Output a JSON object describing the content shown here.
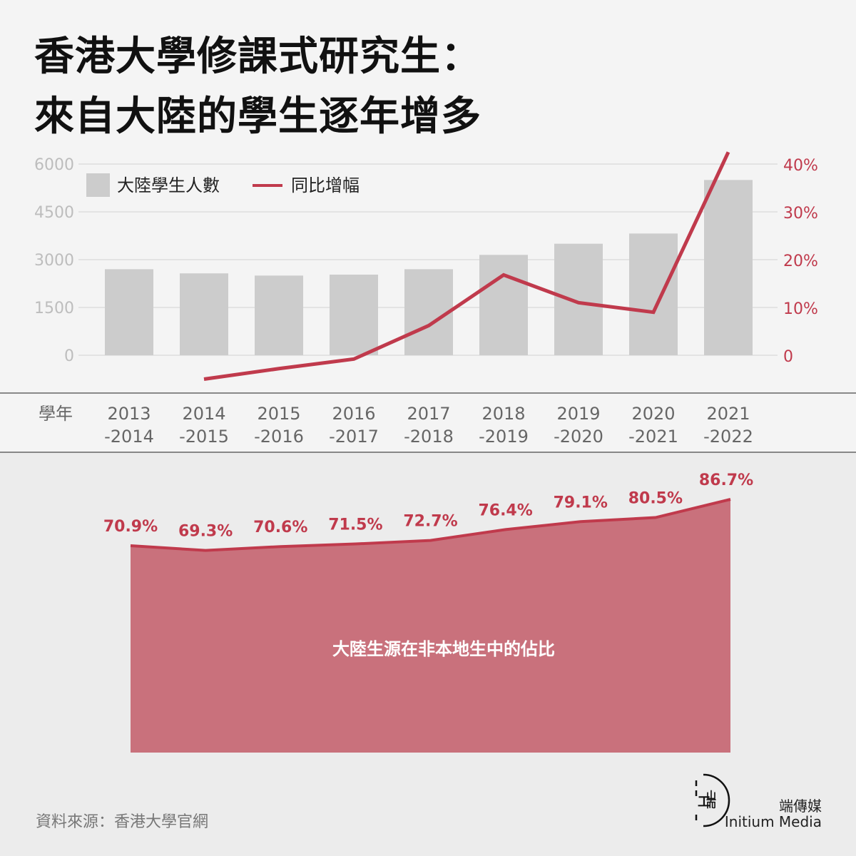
{
  "title": {
    "line1": "香港大學修課式研究生：",
    "line2": "來自大陸的學生逐年增多"
  },
  "colors": {
    "bar": "#cccccc",
    "line": "#c03a4c",
    "area": "#c9717c",
    "grid": "#dddddd",
    "axis": "#888888"
  },
  "legend": {
    "bars_label": "大陸學生人數",
    "line_label": "同比增幅"
  },
  "x_axis_name": "學年",
  "source": "資料來源：香港大學官網",
  "brand": {
    "name_cn": "端傳媒",
    "name_en": "Initium Media",
    "logo_icon": "initium-logo-icon"
  },
  "chart_data": [
    {
      "type": "bar",
      "categories": [
        [
          "2013",
          "-2014"
        ],
        [
          "2014",
          "-2015"
        ],
        [
          "2015",
          "-2016"
        ],
        [
          "2016",
          "-2017"
        ],
        [
          "2017",
          "-2018"
        ],
        [
          "2018",
          "-2019"
        ],
        [
          "2019",
          "-2020"
        ],
        [
          "2020",
          "-2021"
        ],
        [
          "2021",
          "-2022"
        ]
      ],
      "series": [
        {
          "name": "大陸學生人數",
          "axis": "left",
          "type": "bar",
          "values": [
            2700,
            2570,
            2500,
            2530,
            2700,
            3150,
            3500,
            3820,
            5500
          ]
        },
        {
          "name": "同比增幅",
          "axis": "right",
          "type": "line",
          "values": [
            null,
            -5,
            -2.8,
            -0.8,
            6.2,
            16.8,
            11,
            9,
            42.5
          ]
        }
      ],
      "y_left": {
        "ticks": [
          0,
          1500,
          3000,
          4500,
          6000
        ],
        "range": [
          0,
          6000
        ]
      },
      "y_right": {
        "ticks": [
          0,
          10,
          20,
          30,
          40
        ],
        "tick_labels": [
          "0",
          "10%",
          "20%",
          "30%",
          "40%"
        ],
        "range": [
          0,
          40
        ]
      },
      "grid": true,
      "legend_position": "top-left"
    },
    {
      "type": "area",
      "caption": "大陸生源在非本地生中的佔比",
      "values": [
        70.9,
        69.3,
        70.6,
        71.5,
        72.7,
        76.4,
        79.1,
        80.5,
        86.7
      ],
      "labels": [
        "70.9%",
        "69.3%",
        "70.6%",
        "71.5%",
        "72.7%",
        "76.4%",
        "79.1%",
        "80.5%",
        "86.7%"
      ]
    }
  ]
}
